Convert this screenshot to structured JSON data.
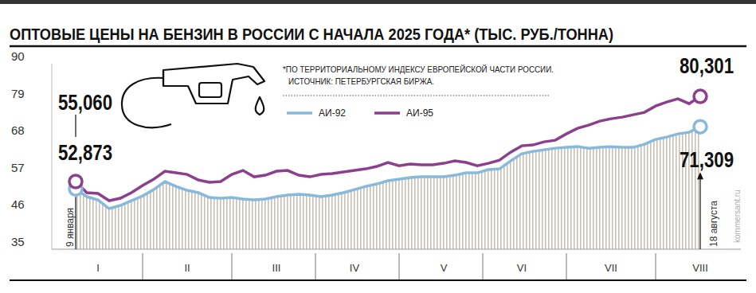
{
  "chart_data": {
    "type": "line",
    "title": "ОПТОВЫЕ ЦЕНЫ НА БЕНЗИН В РОССИИ С НАЧАЛА 2025 ГОДА* (ТЫС. РУБ./ТОННА)",
    "note": "*ПО ТЕРРИТОРИАЛЬНОМУ ИНДЕКСУ ЕВРОПЕЙСКОЙ ЧАСТИ РОССИИ.",
    "source": "ИСТОЧНИК: ПЕТЕРБУРГСКАЯ БИРЖА.",
    "credit": "kommersant.ru",
    "annotations": {
      "first_point": "9 января",
      "last_point": "18 августа"
    },
    "categories": [
      null,
      null,
      "I",
      null,
      null,
      null,
      null,
      null,
      null,
      null,
      "II",
      null,
      null,
      null,
      null,
      null,
      null,
      null,
      "III",
      null,
      null,
      null,
      null,
      null,
      null,
      "IV",
      null,
      null,
      null,
      null,
      null,
      null,
      null,
      "V",
      null,
      null,
      null,
      null,
      null,
      null,
      "VI",
      null,
      null,
      null,
      null,
      null,
      null,
      null,
      "VII",
      null,
      null,
      null,
      null,
      null,
      null,
      null,
      "VIII"
    ],
    "series": [
      {
        "name": "АИ-92",
        "color": "#86b9dc",
        "type": "area",
        "marker": "circle",
        "values": [
          52.873,
          50.57,
          49.62,
          47.03,
          47.97,
          49.39,
          50.8,
          52.69,
          55.05,
          53.63,
          52.45,
          51.75,
          50.33,
          50.09,
          50.33,
          49.86,
          49.62,
          49.86,
          50.57,
          51.04,
          51.27,
          51.04,
          50.57,
          51.04,
          51.75,
          52.69,
          53.63,
          54.34,
          55.28,
          55.75,
          56.23,
          56.46,
          56.46,
          56.46,
          56.93,
          57.64,
          57.64,
          58.58,
          58.82,
          61.18,
          63.3,
          64.01,
          64.48,
          64.95,
          65.19,
          65.42,
          64.95,
          65.19,
          65.42,
          65.19,
          65.19,
          66.13,
          67.55,
          68.25,
          69.2,
          69.67,
          71.309
        ],
        "value_labels": [
          "52,873",
          null,
          null,
          null,
          null,
          null,
          null,
          null,
          null,
          null,
          null,
          null,
          null,
          null,
          null,
          null,
          null,
          null,
          null,
          null,
          null,
          null,
          null,
          null,
          null,
          null,
          null,
          null,
          null,
          null,
          null,
          null,
          null,
          null,
          null,
          null,
          null,
          null,
          null,
          null,
          null,
          null,
          null,
          null,
          null,
          null,
          null,
          null,
          null,
          null,
          null,
          null,
          null,
          null,
          null,
          null,
          "71,309"
        ]
      },
      {
        "name": "АИ-95",
        "color": "#8b3f8c",
        "type": "line",
        "marker": "circle",
        "values": [
          55.06,
          51.75,
          51.51,
          49.39,
          50.09,
          51.75,
          53.87,
          55.75,
          58.11,
          57.64,
          57.17,
          55.52,
          54.81,
          55.05,
          57.17,
          58.35,
          56.46,
          56.93,
          58.11,
          58.35,
          56.93,
          56.46,
          57.17,
          57.41,
          57.88,
          58.35,
          58.82,
          59.53,
          60.71,
          59.76,
          60.24,
          60.0,
          60.0,
          60.47,
          61.18,
          60.71,
          59.76,
          60.47,
          61.42,
          63.77,
          65.66,
          65.9,
          66.84,
          67.31,
          69.2,
          70.85,
          71.79,
          72.97,
          73.68,
          74.15,
          74.86,
          75.57,
          77.45,
          78.63,
          79.58,
          78.16,
          80.301
        ],
        "value_labels": [
          "55,060",
          null,
          null,
          null,
          null,
          null,
          null,
          null,
          null,
          null,
          null,
          null,
          null,
          null,
          null,
          null,
          null,
          null,
          null,
          null,
          null,
          null,
          null,
          null,
          null,
          null,
          null,
          null,
          null,
          null,
          null,
          null,
          null,
          null,
          null,
          null,
          null,
          null,
          null,
          null,
          null,
          null,
          null,
          null,
          null,
          null,
          null,
          null,
          null,
          null,
          null,
          null,
          null,
          null,
          null,
          null,
          "80,301"
        ]
      }
    ],
    "ylim": [
      35,
      90
    ],
    "yticks": [
      35,
      46,
      57,
      68,
      79,
      90
    ],
    "grid": false,
    "legend": "top"
  }
}
